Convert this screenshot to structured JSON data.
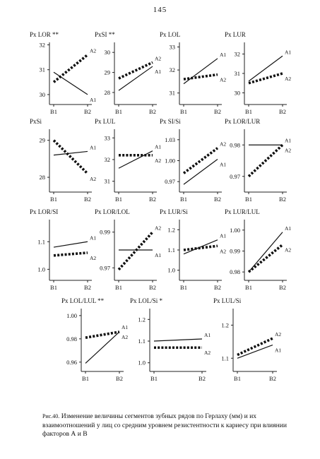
{
  "page_number": "145",
  "caption": {
    "label": "Рис.40.",
    "text": "Изменение величины сегментов зубных рядов по Герлаху (мм) и их взаимоотношений у лиц со средним уровнем резистентности к кариесу при влиянии факторов А и В"
  },
  "chart_data": [
    {
      "type": "line",
      "title": "Px LOR **",
      "categories": [
        "B1",
        "B2"
      ],
      "yticks": [
        "30",
        "31",
        "32"
      ],
      "ylim": [
        29.6,
        32.1
      ],
      "series": [
        {
          "name": "A1",
          "style": "solid",
          "values": [
            30.9,
            30.0
          ]
        },
        {
          "name": "A2",
          "style": "dotted",
          "values": [
            30.5,
            31.6
          ]
        }
      ]
    },
    {
      "type": "line",
      "title": "PxSI **",
      "categories": [
        "B1",
        "B2"
      ],
      "yticks": [
        "28",
        "29",
        "30"
      ],
      "ylim": [
        27.4,
        30.5
      ],
      "series": [
        {
          "name": "A1",
          "style": "solid",
          "values": [
            28.1,
            29.3
          ]
        },
        {
          "name": "A2",
          "style": "dotted",
          "values": [
            28.7,
            29.5
          ]
        }
      ]
    },
    {
      "type": "line",
      "title": "Px LOL",
      "categories": [
        "B1",
        "B2"
      ],
      "yticks": [
        "31",
        "32",
        "33"
      ],
      "ylim": [
        30.5,
        33.2
      ],
      "series": [
        {
          "name": "A1",
          "style": "solid",
          "values": [
            31.4,
            32.5
          ]
        },
        {
          "name": "A2",
          "style": "dotted",
          "values": [
            31.6,
            31.8
          ]
        }
      ]
    },
    {
      "type": "line",
      "title": "Px LUR",
      "categories": [
        "B1",
        "B2"
      ],
      "yticks": [
        "30",
        "31",
        "32"
      ],
      "ylim": [
        29.4,
        32.6
      ],
      "series": [
        {
          "name": "A1",
          "style": "solid",
          "values": [
            30.6,
            31.9
          ]
        },
        {
          "name": "A2",
          "style": "dotted",
          "values": [
            30.5,
            31.0
          ]
        }
      ]
    },
    {
      "type": "line",
      "title": "PxSi",
      "categories": [
        "B1",
        "B2"
      ],
      "yticks": [
        "28",
        "29"
      ],
      "ylim": [
        27.6,
        29.3
      ],
      "series": [
        {
          "name": "A1",
          "style": "solid",
          "values": [
            28.6,
            28.7
          ]
        },
        {
          "name": "A2",
          "style": "dotted",
          "values": [
            29.0,
            28.1
          ]
        }
      ]
    },
    {
      "type": "line",
      "title": "Px LUL",
      "categories": [
        "B1",
        "B2"
      ],
      "yticks": [
        "31",
        "32",
        "33"
      ],
      "ylim": [
        30.5,
        33.4
      ],
      "series": [
        {
          "name": "A1",
          "style": "solid",
          "values": [
            31.6,
            32.4
          ]
        },
        {
          "name": "A2",
          "style": "dotted",
          "values": [
            32.2,
            32.2
          ]
        }
      ]
    },
    {
      "type": "line",
      "title": "Px SI/Si",
      "categories": [
        "B1",
        "B2"
      ],
      "yticks": [
        "0.97",
        "1.00",
        "1.03"
      ],
      "ylim": [
        0.955,
        1.045
      ],
      "series": [
        {
          "name": "A1",
          "style": "solid",
          "values": [
            0.966,
            1.002
          ]
        },
        {
          "name": "A2",
          "style": "dotted",
          "values": [
            0.982,
            1.018
          ]
        }
      ]
    },
    {
      "type": "line",
      "title": "Px LOR/LUR",
      "categories": [
        "B1",
        "B2"
      ],
      "yticks": [
        "0.97",
        "0.98"
      ],
      "ylim": [
        0.965,
        0.985
      ],
      "series": [
        {
          "name": "A1",
          "style": "solid",
          "values": [
            0.98,
            0.98
          ]
        },
        {
          "name": "A2",
          "style": "dotted",
          "values": [
            0.97,
            0.98
          ]
        }
      ]
    },
    {
      "type": "line",
      "title": "Px LOR/SI",
      "categories": [
        "B1",
        "B2"
      ],
      "yticks": [
        "1.0",
        "1.1"
      ],
      "ylim": [
        0.96,
        1.18
      ],
      "series": [
        {
          "name": "A1",
          "style": "solid",
          "values": [
            1.08,
            1.1
          ]
        },
        {
          "name": "A2",
          "style": "dotted",
          "values": [
            1.05,
            1.06
          ]
        }
      ]
    },
    {
      "type": "line",
      "title": "Px LOR/LOL",
      "categories": [
        "B1",
        "B2"
      ],
      "yticks": [
        "0.97",
        "0.99"
      ],
      "ylim": [
        0.963,
        0.997
      ],
      "series": [
        {
          "name": "A1",
          "style": "solid",
          "values": [
            0.98,
            0.98
          ]
        },
        {
          "name": "A2",
          "style": "dotted",
          "values": [
            0.969,
            0.99
          ]
        }
      ]
    },
    {
      "type": "line",
      "title": "Px LUR/Si",
      "categories": [
        "B1",
        "B2"
      ],
      "yticks": [
        "1.0",
        "1.1",
        "1.2"
      ],
      "ylim": [
        0.95,
        1.25
      ],
      "series": [
        {
          "name": "A1",
          "style": "solid",
          "values": [
            1.08,
            1.15
          ]
        },
        {
          "name": "A2",
          "style": "dotted",
          "values": [
            1.1,
            1.12
          ]
        }
      ]
    },
    {
      "type": "line",
      "title": "Px LUR/LUL",
      "categories": [
        "B1",
        "B2"
      ],
      "yticks": [
        "0.98",
        "0.99",
        "1.00"
      ],
      "ylim": [
        0.976,
        1.005
      ],
      "series": [
        {
          "name": "A1",
          "style": "solid",
          "values": [
            0.98,
            0.999
          ]
        },
        {
          "name": "A2",
          "style": "dotted",
          "values": [
            0.98,
            0.993
          ]
        }
      ]
    },
    {
      "type": "line",
      "title": "Px LOL/LUL **",
      "categories": [
        "B1",
        "B2"
      ],
      "yticks": [
        "0.96",
        "0.98",
        "1.00"
      ],
      "ylim": [
        0.952,
        1.006
      ],
      "series": [
        {
          "name": "A1",
          "style": "solid",
          "values": [
            0.959,
            0.986
          ]
        },
        {
          "name": "A2",
          "style": "dotted",
          "values": [
            0.981,
            0.986
          ]
        }
      ]
    },
    {
      "type": "line",
      "title": "Px LOL/Si *",
      "categories": [
        "B1",
        "B2"
      ],
      "yticks": [
        "1.0",
        "1.1",
        "1.2"
      ],
      "ylim": [
        0.96,
        1.25
      ],
      "series": [
        {
          "name": "A1",
          "style": "solid",
          "values": [
            1.1,
            1.11
          ]
        },
        {
          "name": "A2",
          "style": "dotted",
          "values": [
            1.07,
            1.07
          ]
        }
      ]
    },
    {
      "type": "line",
      "title": "Px LUL/Si",
      "categories": [
        "B1",
        "B2"
      ],
      "yticks": [
        "1.1",
        "1.2"
      ],
      "ylim": [
        1.06,
        1.25
      ],
      "series": [
        {
          "name": "A1",
          "style": "solid",
          "values": [
            1.1,
            1.14
          ]
        },
        {
          "name": "A2",
          "style": "dotted",
          "values": [
            1.11,
            1.16
          ]
        }
      ]
    }
  ]
}
